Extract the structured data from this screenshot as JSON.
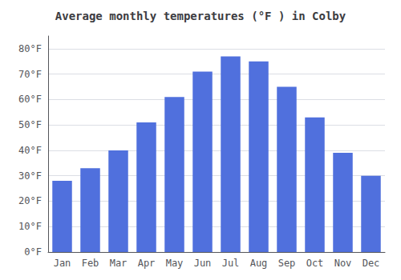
{
  "chart_data": {
    "type": "bar",
    "title": "Average monthly temperatures (°F ) in Colby",
    "categories": [
      "Jan",
      "Feb",
      "Mar",
      "Apr",
      "May",
      "Jun",
      "Jul",
      "Aug",
      "Sep",
      "Oct",
      "Nov",
      "Dec"
    ],
    "values": [
      28,
      33,
      40,
      51,
      61,
      71,
      77,
      75,
      65,
      53,
      39,
      30
    ],
    "ylim": [
      0,
      85
    ],
    "yticks": [
      {
        "value": 0,
        "label": "0°F"
      },
      {
        "value": 10,
        "label": "10°F"
      },
      {
        "value": 20,
        "label": "20°F"
      },
      {
        "value": 30,
        "label": "30°F"
      },
      {
        "value": 40,
        "label": "40°F"
      },
      {
        "value": 50,
        "label": "50°F"
      },
      {
        "value": 60,
        "label": "60°F"
      },
      {
        "value": 70,
        "label": "70°F"
      },
      {
        "value": 80,
        "label": "80°F"
      }
    ],
    "grid": true
  }
}
